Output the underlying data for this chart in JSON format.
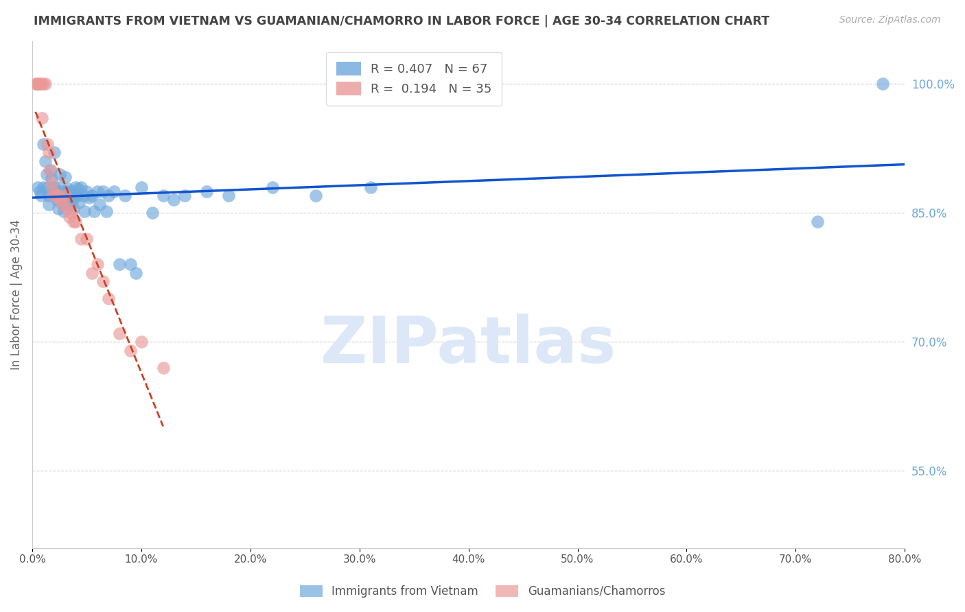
{
  "title": "IMMIGRANTS FROM VIETNAM VS GUAMANIAN/CHAMORRO IN LABOR FORCE | AGE 30-34 CORRELATION CHART",
  "source": "Source: ZipAtlas.com",
  "ylabel": "In Labor Force | Age 30-34",
  "x_ticks": [
    "0.0%",
    "10.0%",
    "20.0%",
    "30.0%",
    "40.0%",
    "50.0%",
    "60.0%",
    "70.0%",
    "80.0%"
  ],
  "xlim": [
    0.0,
    0.8
  ],
  "ylim": [
    0.46,
    1.05
  ],
  "vietnam_R": 0.407,
  "vietnam_N": 67,
  "guam_R": 0.194,
  "guam_N": 35,
  "vietnam_color": "#6fa8dc",
  "guam_color": "#ea9999",
  "vietnam_line_color": "#1155cc",
  "guam_line_color": "#cc4125",
  "background_color": "#ffffff",
  "grid_color": "#cccccc",
  "title_color": "#444444",
  "right_axis_color": "#6fa8dc",
  "vietnam_x": [
    0.005,
    0.007,
    0.008,
    0.01,
    0.01,
    0.012,
    0.013,
    0.014,
    0.015,
    0.015,
    0.017,
    0.018,
    0.019,
    0.02,
    0.02,
    0.021,
    0.022,
    0.023,
    0.024,
    0.025,
    0.025,
    0.026,
    0.027,
    0.028,
    0.029,
    0.03,
    0.031,
    0.032,
    0.033,
    0.034,
    0.035,
    0.036,
    0.037,
    0.038,
    0.04,
    0.041,
    0.042,
    0.043,
    0.045,
    0.047,
    0.048,
    0.05,
    0.052,
    0.055,
    0.057,
    0.06,
    0.062,
    0.065,
    0.068,
    0.07,
    0.075,
    0.08,
    0.085,
    0.09,
    0.095,
    0.1,
    0.11,
    0.12,
    0.13,
    0.14,
    0.16,
    0.18,
    0.22,
    0.26,
    0.31,
    0.72,
    0.78
  ],
  "vietnam_y": [
    0.88,
    0.875,
    0.87,
    0.93,
    0.88,
    0.91,
    0.895,
    0.88,
    0.87,
    0.86,
    0.9,
    0.89,
    0.875,
    0.92,
    0.88,
    0.875,
    0.87,
    0.865,
    0.855,
    0.895,
    0.88,
    0.875,
    0.868,
    0.86,
    0.852,
    0.892,
    0.875,
    0.86,
    0.878,
    0.86,
    0.875,
    0.87,
    0.865,
    0.855,
    0.88,
    0.87,
    0.878,
    0.862,
    0.88,
    0.87,
    0.852,
    0.875,
    0.868,
    0.87,
    0.852,
    0.875,
    0.86,
    0.875,
    0.852,
    0.87,
    0.875,
    0.79,
    0.87,
    0.79,
    0.78,
    0.88,
    0.85,
    0.87,
    0.865,
    0.87,
    0.875,
    0.87,
    0.88,
    0.87,
    0.88,
    0.84,
    1.0
  ],
  "guam_x": [
    0.003,
    0.004,
    0.005,
    0.006,
    0.007,
    0.008,
    0.009,
    0.01,
    0.012,
    0.014,
    0.015,
    0.016,
    0.018,
    0.019,
    0.02,
    0.022,
    0.024,
    0.026,
    0.028,
    0.03,
    0.032,
    0.034,
    0.036,
    0.038,
    0.04,
    0.045,
    0.05,
    0.055,
    0.06,
    0.065,
    0.07,
    0.08,
    0.09,
    0.1,
    0.12
  ],
  "guam_y": [
    1.0,
    1.0,
    1.0,
    1.0,
    1.0,
    1.0,
    0.96,
    1.0,
    1.0,
    0.93,
    0.92,
    0.9,
    0.885,
    0.875,
    0.87,
    0.87,
    0.87,
    0.865,
    0.86,
    0.87,
    0.855,
    0.845,
    0.85,
    0.84,
    0.84,
    0.82,
    0.82,
    0.78,
    0.79,
    0.77,
    0.75,
    0.71,
    0.69,
    0.7,
    0.67
  ]
}
